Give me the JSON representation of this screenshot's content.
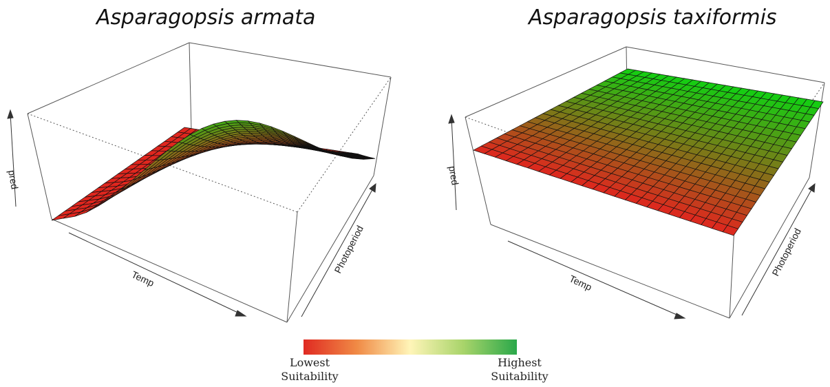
{
  "panels": [
    {
      "title": "Asparagopsis  armata",
      "xlabel": "Temp",
      "ylabel": "Photoperiod",
      "zlabel": "pred"
    },
    {
      "title": "Asparagopsis  taxiformis",
      "xlabel": "Temp",
      "ylabel": "Photoperiod",
      "zlabel": "pred"
    }
  ],
  "legend": {
    "low": "Lowest\nSuitability",
    "high": "Highest\nSuitability",
    "colors": [
      "#e02a22",
      "#f08a45",
      "#fff5b8",
      "#a8d46a",
      "#2aa84a"
    ]
  },
  "chart_data": [
    {
      "type": "surface",
      "title": "Asparagopsis  armata",
      "xlabel": "Temp",
      "ylabel": "Photoperiod",
      "zlabel": "pred",
      "grid": true,
      "surface_colors": [
        "#e0261e",
        "#12d012"
      ]
    },
    {
      "type": "surface",
      "title": "Asparagopsis  taxiformis",
      "xlabel": "Temp",
      "ylabel": "Photoperiod",
      "zlabel": "pred",
      "grid": true,
      "surface_colors": [
        "#e0261e",
        "#12d012"
      ]
    }
  ]
}
